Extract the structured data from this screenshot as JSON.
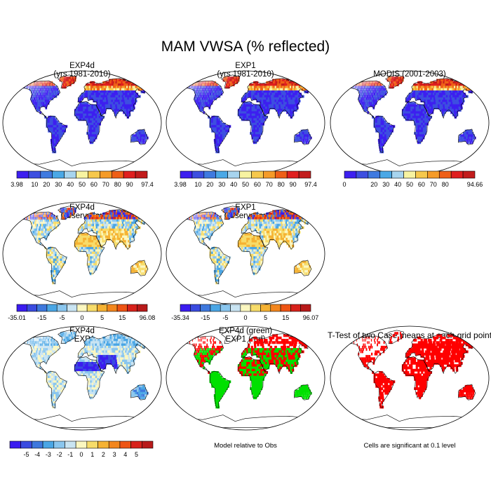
{
  "chart_data": [
    {
      "type": "map",
      "title": "MAM VWSA (% reflected)",
      "panels": [
        {
          "id": "exp4d",
          "title_lines": [
            "EXP4d",
            "(yrs 1981-2010)"
          ],
          "style": "field",
          "palette": "abs",
          "colorbar": {
            "labels": [
              "3.98",
              "10",
              "20",
              "30",
              "40",
              "50",
              "60",
              "70",
              "80",
              "90",
              "97.4"
            ],
            "min": 3.98,
            "max": 97.4
          }
        },
        {
          "id": "exp1",
          "title_lines": [
            "EXP1",
            "(yrs 1981-2010)"
          ],
          "style": "field",
          "palette": "abs",
          "colorbar": {
            "labels": [
              "3.98",
              "10",
              "20",
              "30",
              "40",
              "50",
              "60",
              "70",
              "80",
              "90",
              "97.4"
            ],
            "min": 3.98,
            "max": 97.4
          }
        },
        {
          "id": "modis",
          "title_lines": [
            "MODIS (2001-2003)"
          ],
          "style": "field",
          "palette": "abs",
          "colorbar": {
            "labels": [
              "0",
              "",
              "20",
              "30",
              "40",
              "50",
              "60",
              "70",
              "80",
              "",
              "94.66"
            ],
            "min": 0,
            "max": 94.66
          }
        },
        {
          "id": "exp4d-obs",
          "title_lines": [
            "EXP4d",
            "- Observations"
          ],
          "style": "diff",
          "palette": "diff",
          "colorbar": {
            "labels": [
              "-35.01",
              "",
              "-15",
              "",
              "-5",
              "",
              "0",
              "",
              "5",
              "",
              "15",
              "",
              "96.08"
            ],
            "min": -35.01,
            "max": 96.08
          }
        },
        {
          "id": "exp1-obs",
          "title_lines": [
            "EXP1",
            "- Observations"
          ],
          "style": "diff",
          "palette": "diff",
          "colorbar": {
            "labels": [
              "-35.34",
              "",
              "-15",
              "",
              "-5",
              "",
              "0",
              "",
              "5",
              "",
              "15",
              "",
              "96.07"
            ],
            "min": -35.34,
            "max": 96.07
          }
        },
        {
          "id": "exp4d-exp1",
          "title_lines": [
            "EXP4d",
            "- EXP1"
          ],
          "style": "diff2",
          "palette": "diff",
          "colorbar": {
            "labels": [
              "",
              "-5",
              "-4",
              "-3",
              "-2",
              "-1",
              "0",
              "1",
              "2",
              "3",
              "4",
              "5",
              ""
            ],
            "min": -6,
            "max": 6
          }
        },
        {
          "id": "green-red",
          "title_lines": [
            "EXP4d (green)",
            "EXP1 (red)"
          ],
          "style": "greenred",
          "note": "Model relative to Obs"
        },
        {
          "id": "ttest",
          "title_lines": [
            "T-Test of two Case means at each grid point"
          ],
          "style": "red",
          "note": "Cells are significant at 0.1 level"
        }
      ]
    }
  ],
  "colors": {
    "abs_scale": [
      "#3d1ff0",
      "#3d4fe0",
      "#3f7ae0",
      "#4aa8e6",
      "#a7d4ee",
      "#f7f3a1",
      "#f6c84c",
      "#f59b28",
      "#ef5f17",
      "#e01f1f",
      "#c21c1c"
    ],
    "diff_scale": [
      "#3b1cf0",
      "#3a4be0",
      "#3e78dd",
      "#4aa6e5",
      "#8ac6ee",
      "#c9e4f2",
      "#fbf7c0",
      "#f7dc6a",
      "#f5b233",
      "#f3861d",
      "#ee5414",
      "#d8221b",
      "#b81a1a"
    ],
    "green": "#00e000",
    "red": "#ff0000"
  }
}
